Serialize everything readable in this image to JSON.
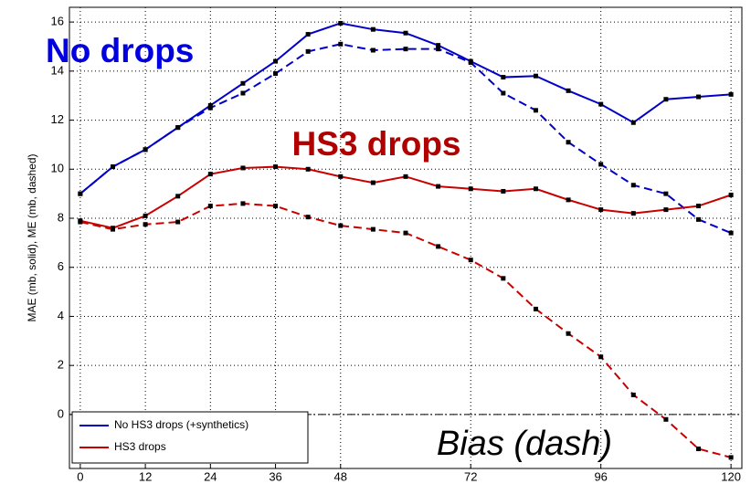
{
  "chart_data": {
    "type": "line",
    "ylabel": "MAE (mb, solid), ME (mb, dashed)",
    "x": [
      0,
      6,
      12,
      18,
      24,
      30,
      36,
      42,
      48,
      54,
      60,
      66,
      72,
      78,
      84,
      90,
      96,
      102,
      108,
      114,
      120
    ],
    "series": [
      {
        "name": "No HS3 drops (+synthetics)",
        "color": "#0000c8",
        "values": [
          9.0,
          10.1,
          10.8,
          11.7,
          12.6,
          13.5,
          14.4,
          15.5,
          15.95,
          15.7,
          15.55,
          15.05,
          14.4,
          13.75,
          13.8,
          13.2,
          12.65,
          11.9,
          12.85,
          12.95,
          13.05
        ],
        "bias_values": [
          9.0,
          10.1,
          10.8,
          11.7,
          12.5,
          13.1,
          13.9,
          14.8,
          15.1,
          14.85,
          14.9,
          14.9,
          14.35,
          13.1,
          12.4,
          11.1,
          10.2,
          9.35,
          9.0,
          7.95,
          7.4
        ]
      },
      {
        "name": "HS3 drops",
        "color": "#c80000",
        "values": [
          7.9,
          7.6,
          8.1,
          8.9,
          9.8,
          10.05,
          10.1,
          10.0,
          9.7,
          9.45,
          9.7,
          9.3,
          9.2,
          9.1,
          9.2,
          8.75,
          8.35,
          8.2,
          8.35,
          8.5,
          8.95
        ],
        "bias_values": [
          7.85,
          7.55,
          7.75,
          7.85,
          8.5,
          8.6,
          8.5,
          8.05,
          7.7,
          7.55,
          7.4,
          6.85,
          6.3,
          5.55,
          4.3,
          3.3,
          2.35,
          0.8,
          -0.2,
          -1.4,
          -1.75
        ]
      }
    ],
    "reference_line": 0,
    "xlim": [
      -2,
      122
    ],
    "ylim": [
      -2.2,
      16.6
    ],
    "xticks": [
      0,
      12,
      24,
      36,
      48,
      72,
      96,
      120
    ],
    "yticks": [
      0,
      2,
      4,
      6,
      8,
      10,
      12,
      14,
      16
    ],
    "grid": true,
    "legend": "lower left",
    "annotations": [
      {
        "text": "No drops",
        "color": "#0000e0"
      },
      {
        "text": "HS3 drops",
        "color": "#b00000"
      },
      {
        "text": "Bias (dash)",
        "color": "#000000"
      }
    ]
  }
}
